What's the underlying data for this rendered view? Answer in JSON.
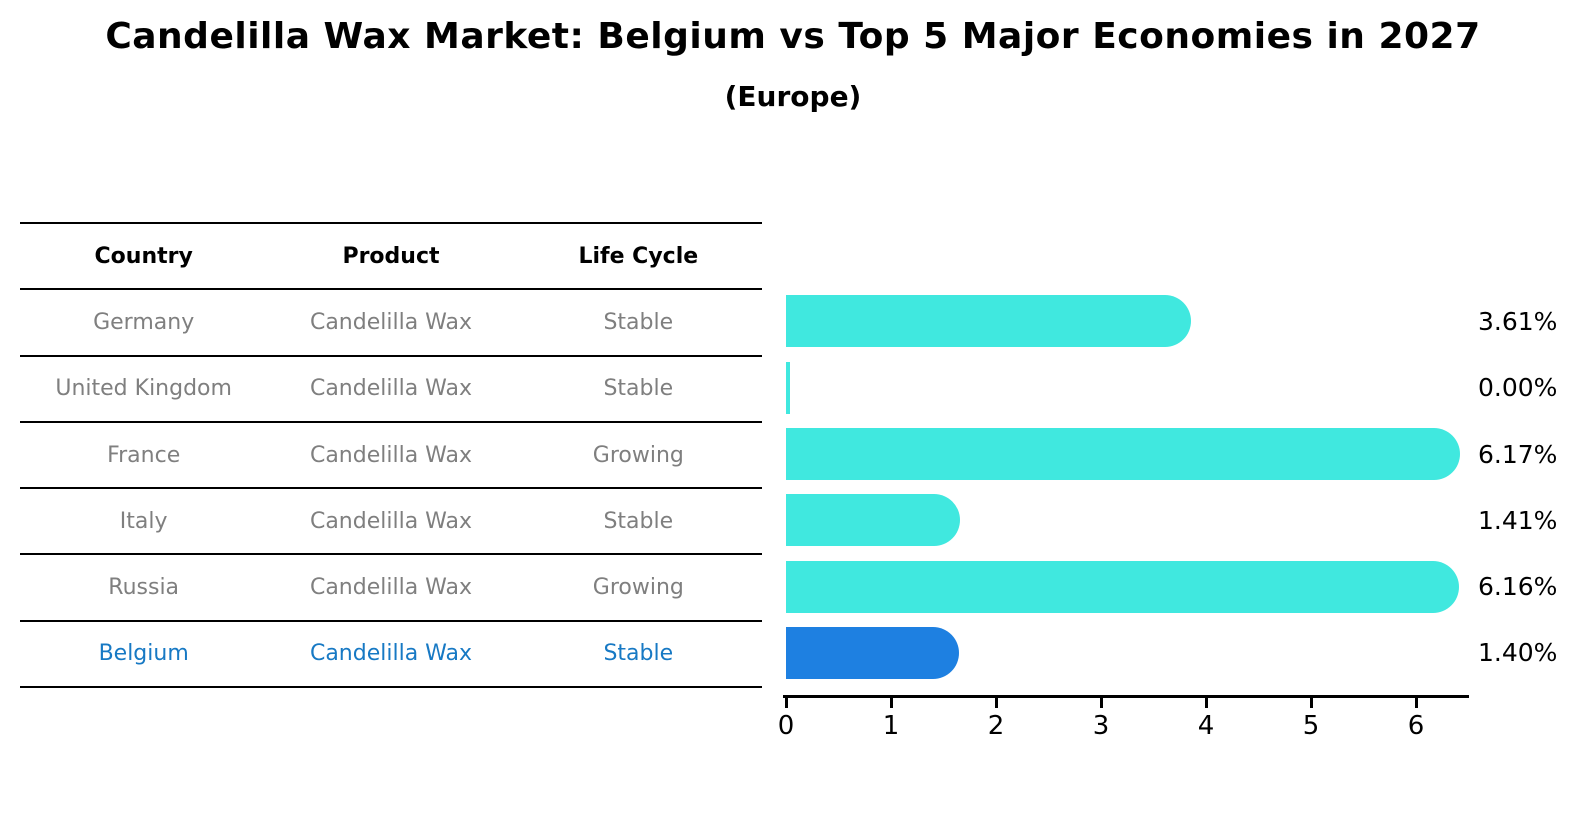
{
  "chart_data": {
    "type": "bar",
    "orientation": "horizontal",
    "title": "Candelilla Wax Market: Belgium vs Top 5 Major Economies in 2027",
    "subtitle": "(Europe)",
    "categories": [
      "Germany",
      "United Kingdom",
      "France",
      "Italy",
      "Russia",
      "Belgium"
    ],
    "values": [
      3.61,
      0.0,
      6.17,
      1.41,
      6.16,
      1.4
    ],
    "value_labels": [
      "3.61%",
      "0.00%",
      "6.17%",
      "1.41%",
      "6.16%",
      "1.40%"
    ],
    "value_suffix": "%",
    "xticks": [
      0,
      1,
      2,
      3,
      4,
      5,
      6
    ],
    "xlim": [
      0,
      6.5
    ],
    "grid": false,
    "legend": false,
    "bar_color": "#40e8df",
    "highlight_color": "#1e80e1",
    "highlight_category": "Belgium"
  },
  "table": {
    "headers": [
      "Country",
      "Product",
      "Life Cycle"
    ],
    "rows": [
      {
        "country": "Germany",
        "product": "Candelilla Wax",
        "life_cycle": "Stable",
        "highlighted": false
      },
      {
        "country": "United Kingdom",
        "product": "Candelilla Wax",
        "life_cycle": "Stable",
        "highlighted": false
      },
      {
        "country": "France",
        "product": "Candelilla Wax",
        "life_cycle": "Growing",
        "highlighted": false
      },
      {
        "country": "Italy",
        "product": "Candelilla Wax",
        "life_cycle": "Stable",
        "highlighted": false
      },
      {
        "country": "Russia",
        "product": "Candelilla Wax",
        "life_cycle": "Growing",
        "highlighted": false
      },
      {
        "country": "Belgium",
        "product": "Candelilla Wax",
        "life_cycle": "Stable",
        "highlighted": true
      }
    ]
  },
  "colors": {
    "highlight_text": "#1779c4",
    "row_text": "#7f7f7f",
    "header_text": "#000000"
  }
}
